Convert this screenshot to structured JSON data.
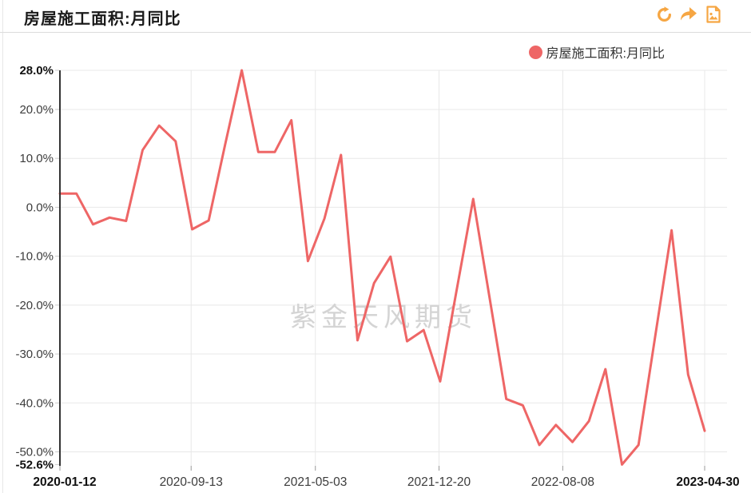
{
  "header": {
    "title": "房屋施工面积:月同比",
    "toolbar": {
      "refresh_label": "refresh",
      "share_label": "share",
      "save_image_label": "save-as-image"
    }
  },
  "legend": {
    "label": "房屋施工面积:月同比",
    "marker_color": "#ee6666"
  },
  "watermark": "紫金天风期货",
  "colors": {
    "line": "#ee6666",
    "axis": "#333333",
    "grid": "#e8e8e8",
    "tick": "#999999",
    "label": "#3c3c3c",
    "bold_label": "#111111",
    "icon": "#f6a643",
    "watermark": "#d4d4d4",
    "title": "#1a1a1a"
  },
  "chart_data": {
    "type": "line",
    "title": "房屋施工面积:月同比",
    "series": [
      {
        "name": "房屋施工面积:月同比",
        "color": "#ee6666",
        "values": [
          2.8,
          2.8,
          -3.5,
          -2.1,
          -2.8,
          11.7,
          16.7,
          13.5,
          -4.5,
          -2.7,
          12.9,
          28.0,
          11.3,
          11.3,
          17.8,
          -11.0,
          -2.3,
          10.7,
          -27.2,
          -15.5,
          -10.1,
          -27.4,
          -25.1,
          -35.6,
          -16.9,
          1.7,
          -18.7,
          -39.2,
          -40.5,
          -48.6,
          -44.5,
          -48.0,
          -43.7,
          -33.1,
          -52.6,
          -48.6,
          -26.6,
          -4.7,
          -34.2,
          -45.7
        ]
      }
    ],
    "categories": [
      "2020-01",
      "2020-02",
      "2020-03",
      "2020-04",
      "2020-05",
      "2020-06",
      "2020-07",
      "2020-08",
      "2020-09",
      "2020-10",
      "2020-11",
      "2020-12",
      "2021-01",
      "2021-02",
      "2021-03",
      "2021-04",
      "2021-05",
      "2021-06",
      "2021-07",
      "2021-08",
      "2021-09",
      "2021-10",
      "2021-11",
      "2021-12",
      "2022-01",
      "2022-02",
      "2022-03",
      "2022-04",
      "2022-05",
      "2022-06",
      "2022-07",
      "2022-08",
      "2022-09",
      "2022-10",
      "2022-11",
      "2022-12",
      "2023-01",
      "2023-02",
      "2023-03",
      "2023-04"
    ],
    "ylim": [
      -52.6,
      28.0
    ],
    "ymax_label": "28.0%",
    "ymin_label": "-52.6%",
    "grid": true,
    "legend_position": "top-right",
    "y_ticks": [
      {
        "label": "28.0%",
        "value": 28.0,
        "bold": true,
        "grid": true
      },
      {
        "label": "20.0%",
        "value": 20.0,
        "bold": false,
        "grid": true
      },
      {
        "label": "10.0%",
        "value": 10.0,
        "bold": false,
        "grid": true
      },
      {
        "label": "0.0%",
        "value": 0.0,
        "bold": false,
        "grid": true
      },
      {
        "label": "-10.0%",
        "value": -10.0,
        "bold": false,
        "grid": true
      },
      {
        "label": "-20.0%",
        "value": -20.0,
        "bold": false,
        "grid": true
      },
      {
        "label": "-30.0%",
        "value": -30.0,
        "bold": false,
        "grid": true
      },
      {
        "label": "-40.0%",
        "value": -40.0,
        "bold": false,
        "grid": true
      },
      {
        "label": "-50.0%",
        "value": -50.0,
        "bold": false,
        "grid": true
      },
      {
        "label": "-52.6%",
        "value": -52.6,
        "bold": true,
        "grid": false
      }
    ],
    "x_ticks": [
      {
        "label": "2020-01-12",
        "pos": 0.0,
        "bold": true,
        "grid": false
      },
      {
        "label": "2020-09-13",
        "pos": 0.2035,
        "bold": false,
        "grid": true
      },
      {
        "label": "2021-05-03",
        "pos": 0.3962,
        "bold": false,
        "grid": true
      },
      {
        "label": "2021-12-20",
        "pos": 0.588,
        "bold": false,
        "grid": true
      },
      {
        "label": "2022-08-08",
        "pos": 0.7799,
        "bold": false,
        "grid": true
      },
      {
        "label": "2023-04-30",
        "pos": 1.0,
        "bold": true,
        "grid": true
      }
    ]
  }
}
